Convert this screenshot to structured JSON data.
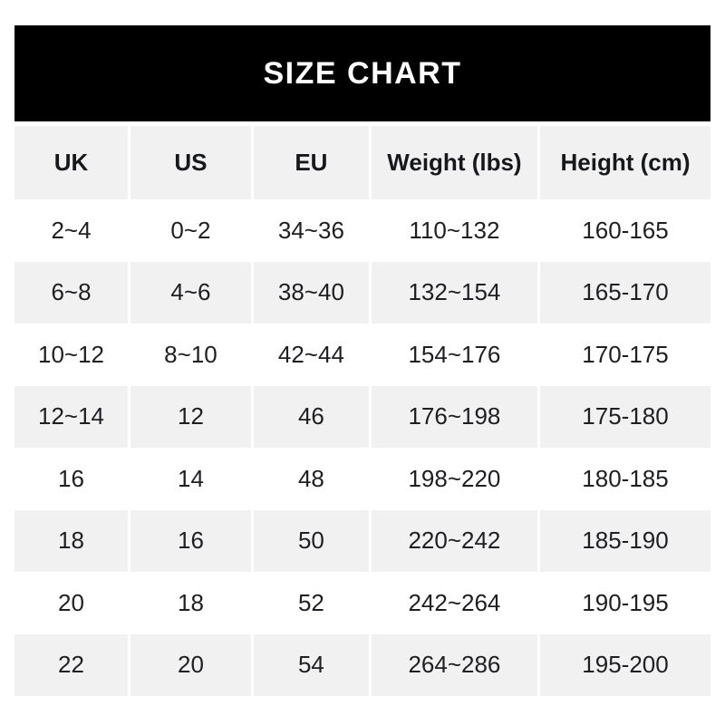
{
  "title": "SIZE CHART",
  "colors": {
    "banner_bg": "#000000",
    "banner_text": "#ffffff",
    "row_alt_bg": "#f1f1f1",
    "row_bg": "#ffffff",
    "text": "#1e1f23",
    "page_bg": "#ffffff"
  },
  "chart_data": {
    "type": "table",
    "title": "SIZE CHART",
    "columns": [
      "UK",
      "US",
      "EU",
      "Weight (lbs)",
      "Height (cm)"
    ],
    "rows": [
      [
        "2~4",
        "0~2",
        "34~36",
        "110~132",
        "160-165"
      ],
      [
        "6~8",
        "4~6",
        "38~40",
        "132~154",
        "165-170"
      ],
      [
        "10~12",
        "8~10",
        "42~44",
        "154~176",
        "170-175"
      ],
      [
        "12~14",
        "12",
        "46",
        "176~198",
        "175-180"
      ],
      [
        "16",
        "14",
        "48",
        "198~220",
        "180-185"
      ],
      [
        "18",
        "16",
        "50",
        "220~242",
        "185-190"
      ],
      [
        "20",
        "18",
        "52",
        "242~264",
        "190-195"
      ],
      [
        "22",
        "20",
        "54",
        "264~286",
        "195-200"
      ]
    ]
  }
}
